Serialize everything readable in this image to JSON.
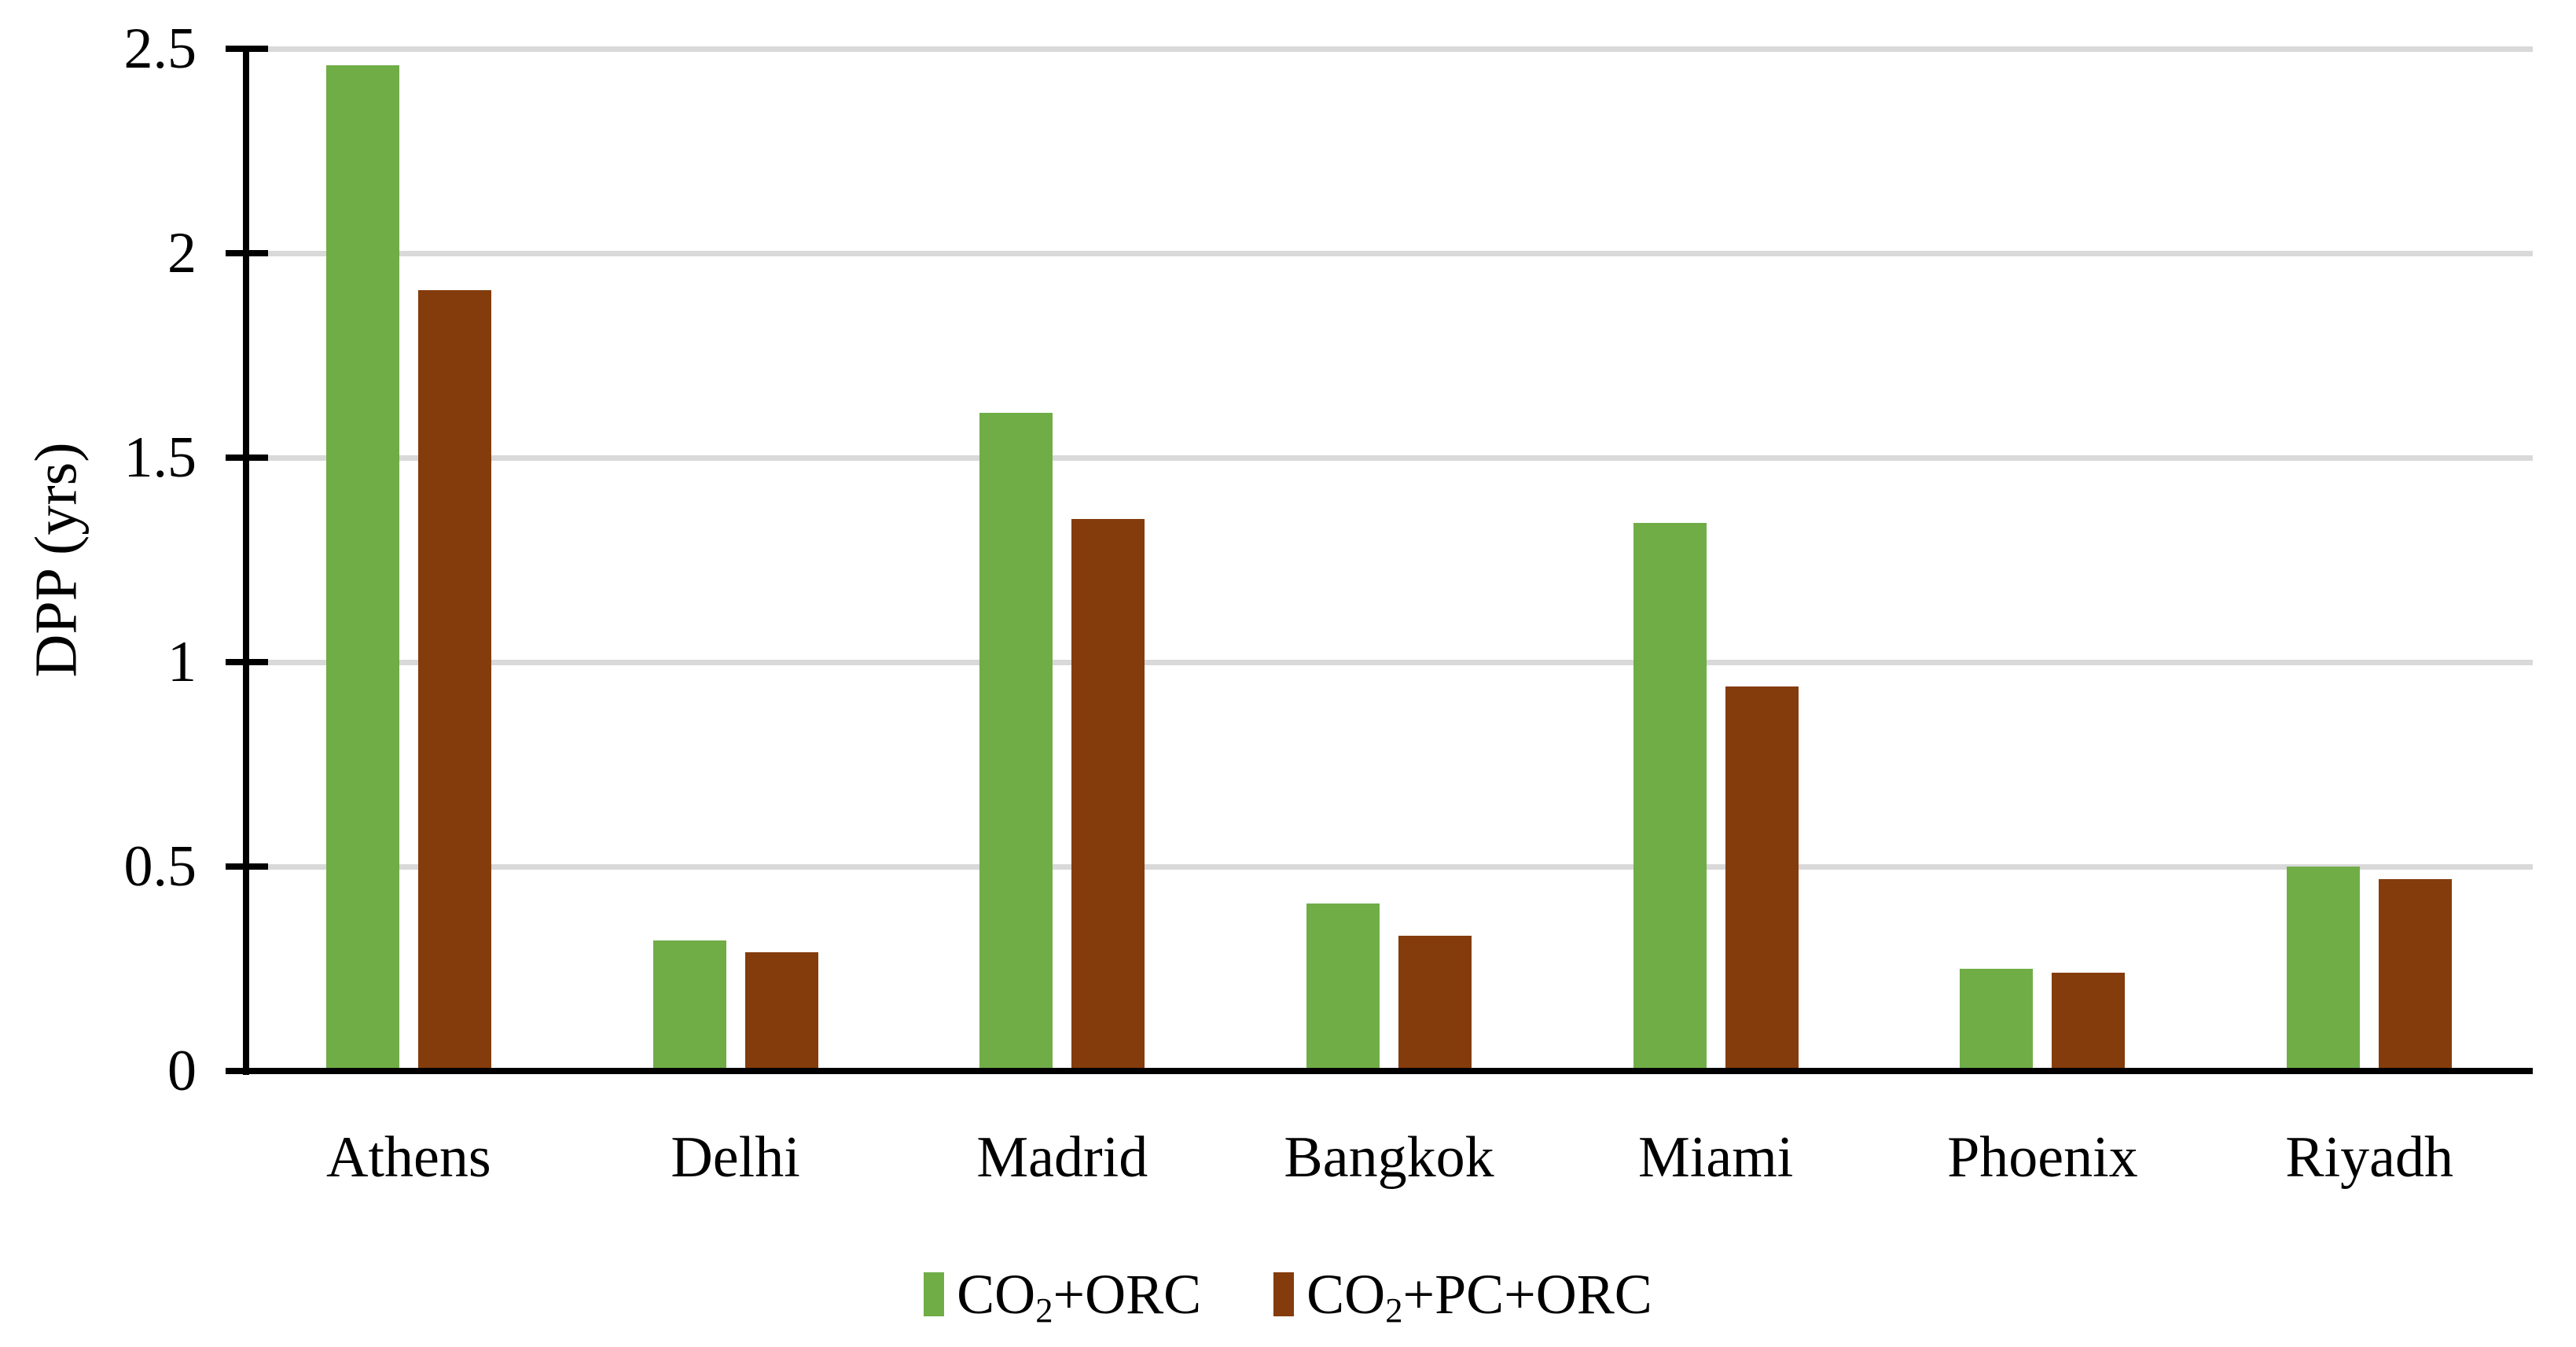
{
  "chart_data": {
    "type": "bar",
    "title": "",
    "xlabel": "",
    "ylabel": "DPP (yrs)",
    "categories": [
      "Athens",
      "Delhi",
      "Madrid",
      "Bangkok",
      "Miami",
      "Phoenix",
      "Riyadh"
    ],
    "series": [
      {
        "name": "CO₂+ORC",
        "color": "#70AD47",
        "values": [
          2.46,
          0.32,
          1.61,
          0.41,
          1.34,
          0.25,
          0.5
        ]
      },
      {
        "name": "CO₂+PC+ORC",
        "color": "#843C0C",
        "values": [
          1.91,
          0.29,
          1.35,
          0.33,
          0.94,
          0.24,
          0.47
        ]
      }
    ],
    "ylim": [
      0,
      2.5
    ],
    "ytick_values": [
      0,
      0.5,
      1,
      1.5,
      2,
      2.5
    ],
    "ytick_labels": [
      "0",
      "0.5",
      "1",
      "1.5",
      "2",
      "2.5"
    ],
    "grid": "horizontal-on",
    "gridline_color": "#D9D9D9",
    "axis_color": "#000000",
    "legend_position": "bottom-center",
    "background_color": "#FFFFFF"
  }
}
